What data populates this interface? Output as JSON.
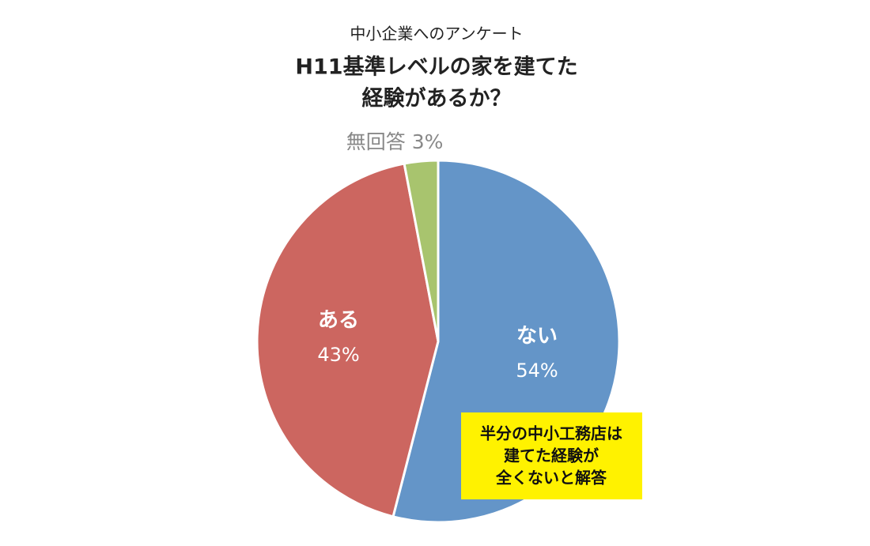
{
  "chart_data": {
    "type": "pie",
    "subtitle": "中小企業へのアンケート",
    "title": [
      "H11基準レベルの家を建てた",
      "経験があるか？"
    ],
    "categories": [
      "ない",
      "ある",
      "無回答"
    ],
    "values": [
      54,
      43,
      3
    ],
    "value_labels": [
      "54%",
      "43%",
      "3%"
    ],
    "colors": [
      "#6495c8",
      "#cc6660",
      "#a8c46e"
    ],
    "annotation": [
      "半分の中小工務店は",
      "建てた経験が",
      "全くないと解答"
    ]
  }
}
